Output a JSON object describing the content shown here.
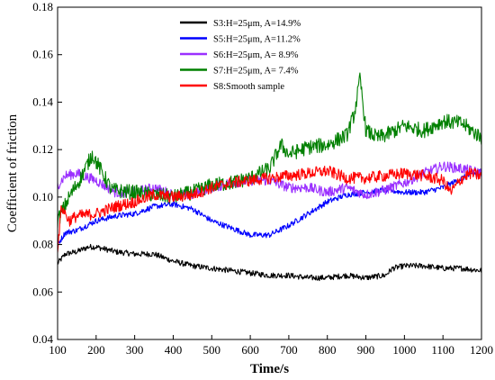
{
  "chart_data": {
    "type": "line",
    "title": "",
    "xlabel": "Time/s",
    "ylabel": "Coefficient of friction",
    "xlim": [
      100,
      1200
    ],
    "ylim": [
      0.04,
      0.18
    ],
    "xticks": [
      100,
      200,
      300,
      400,
      500,
      600,
      700,
      800,
      900,
      1000,
      1100,
      1200
    ],
    "yticks": [
      0.04,
      0.06,
      0.08,
      0.1,
      0.12,
      0.14,
      0.16,
      0.18
    ],
    "ytick_labels": [
      "0.04",
      "0.06",
      "0.08",
      "0.10",
      "0.12",
      "0.14",
      "0.16",
      "0.18"
    ],
    "grid": false,
    "legend_position": "top-center",
    "series": [
      {
        "name": "S3:H=25μm, A=14.9%",
        "color": "#000000",
        "x": [
          100,
          120,
          150,
          180,
          200,
          250,
          300,
          350,
          400,
          450,
          500,
          550,
          600,
          650,
          700,
          750,
          800,
          850,
          900,
          950,
          970,
          1000,
          1050,
          1100,
          1150,
          1200
        ],
        "y": [
          0.072,
          0.076,
          0.077,
          0.079,
          0.079,
          0.077,
          0.076,
          0.076,
          0.073,
          0.071,
          0.07,
          0.069,
          0.068,
          0.067,
          0.067,
          0.066,
          0.066,
          0.067,
          0.066,
          0.067,
          0.07,
          0.071,
          0.071,
          0.07,
          0.07,
          0.069
        ]
      },
      {
        "name": "S5:H=25μm, A=11.2%",
        "color": "#0000ff",
        "x": [
          100,
          120,
          150,
          200,
          250,
          300,
          350,
          400,
          450,
          500,
          550,
          600,
          650,
          700,
          750,
          800,
          850,
          900,
          950,
          1000,
          1050,
          1100,
          1150,
          1200
        ],
        "y": [
          0.08,
          0.085,
          0.086,
          0.09,
          0.092,
          0.093,
          0.096,
          0.097,
          0.095,
          0.09,
          0.087,
          0.084,
          0.084,
          0.088,
          0.093,
          0.098,
          0.101,
          0.102,
          0.103,
          0.102,
          0.102,
          0.104,
          0.108,
          0.111
        ]
      },
      {
        "name": "S6:H=25μm, A= 8.9%",
        "color": "#9b30ff",
        "x": [
          100,
          120,
          150,
          200,
          250,
          300,
          350,
          400,
          450,
          500,
          550,
          600,
          650,
          700,
          750,
          800,
          850,
          900,
          950,
          1000,
          1050,
          1100,
          1150,
          1200
        ],
        "y": [
          0.105,
          0.109,
          0.11,
          0.107,
          0.102,
          0.102,
          0.104,
          0.101,
          0.101,
          0.104,
          0.106,
          0.107,
          0.107,
          0.104,
          0.104,
          0.102,
          0.104,
          0.101,
          0.103,
          0.106,
          0.11,
          0.113,
          0.112,
          0.11
        ]
      },
      {
        "name": "S7:H=25μm, A= 7.4%",
        "color": "#008000",
        "x": [
          100,
          130,
          160,
          190,
          210,
          240,
          300,
          350,
          400,
          450,
          500,
          550,
          600,
          650,
          680,
          700,
          750,
          800,
          850,
          870,
          885,
          900,
          930,
          950,
          1000,
          1050,
          1100,
          1150,
          1200
        ],
        "y": [
          0.09,
          0.1,
          0.108,
          0.118,
          0.112,
          0.103,
          0.102,
          0.101,
          0.1,
          0.102,
          0.105,
          0.106,
          0.108,
          0.112,
          0.122,
          0.118,
          0.121,
          0.122,
          0.126,
          0.135,
          0.15,
          0.128,
          0.125,
          0.126,
          0.13,
          0.128,
          0.132,
          0.131,
          0.125
        ]
      },
      {
        "name": "S8:Smooth sample",
        "color": "#ff0000",
        "x": [
          100,
          110,
          130,
          150,
          200,
          250,
          300,
          350,
          400,
          450,
          500,
          550,
          600,
          650,
          700,
          750,
          800,
          850,
          900,
          950,
          1000,
          1050,
          1100,
          1120,
          1150,
          1170,
          1200
        ],
        "y": [
          0.078,
          0.096,
          0.09,
          0.092,
          0.093,
          0.096,
          0.098,
          0.101,
          0.1,
          0.101,
          0.104,
          0.106,
          0.107,
          0.108,
          0.109,
          0.11,
          0.111,
          0.108,
          0.108,
          0.109,
          0.11,
          0.109,
          0.107,
          0.102,
          0.108,
          0.11,
          0.109
        ]
      }
    ]
  }
}
